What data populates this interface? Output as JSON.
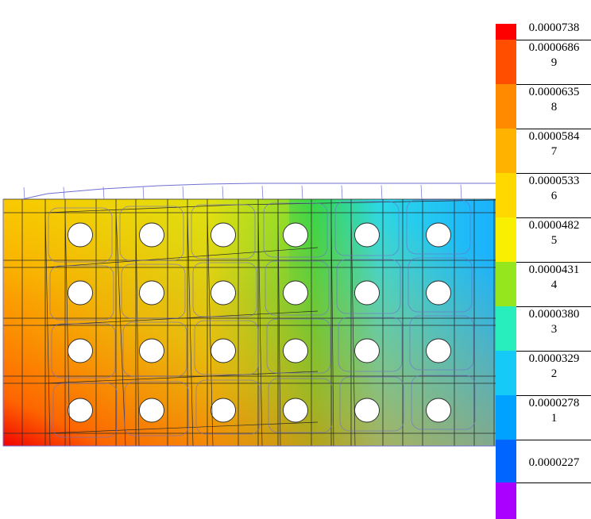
{
  "contour_plot": {
    "colors": {
      "mesh_line": "#2a2a2a",
      "deformed_outline": "#6f6fd2",
      "hole_fill": "#ffffff"
    },
    "color_field": {
      "left_edge": "#f5c700",
      "bottom_left_corner": "#f00000",
      "middle": "#c8e61e",
      "green_band": "#28d850",
      "right_edge": "#1ab0ff"
    },
    "holes": {
      "rows": 4,
      "columns": 6
    }
  },
  "legend": {
    "bands": [
      {
        "color": "#ff0000",
        "label": "0.0000738"
      },
      {
        "color": "#ff4e00",
        "label": "0.0000686\n9"
      },
      {
        "color": "#ff8a00",
        "label": "0.0000635\n8"
      },
      {
        "color": "#ffb200",
        "label": "0.0000584\n7"
      },
      {
        "color": "#ffd800",
        "label": "0.0000533\n6"
      },
      {
        "color": "#f8f000",
        "label": "0.0000482\n5"
      },
      {
        "color": "#96e61e",
        "label": "0.0000431\n4"
      },
      {
        "color": "#28eebe",
        "label": "0.0000380\n3"
      },
      {
        "color": "#16caf8",
        "label": "0.0000329\n2"
      },
      {
        "color": "#00a2ff",
        "label": "0.0000278\n1"
      },
      {
        "color": "#0064ff",
        "label": "0.0000227"
      },
      {
        "color": "#aa00ff",
        "label": ""
      }
    ]
  }
}
